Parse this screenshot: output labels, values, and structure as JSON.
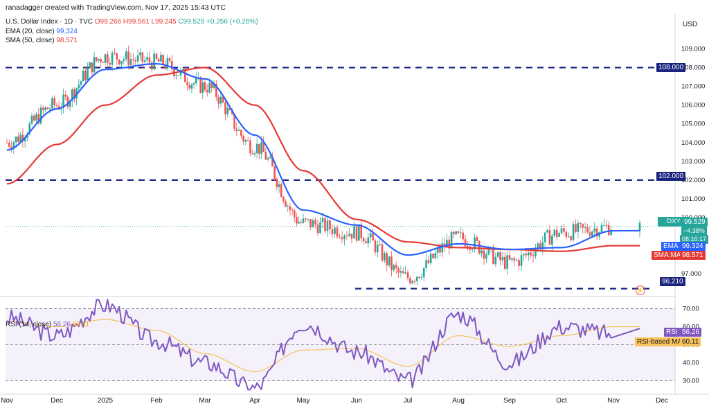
{
  "header": {
    "attribution": "ranadagger created with TradingView.com, Nov 17, 2025 15:43 UTC",
    "symbol": "U.S. Dollar Index · 1D · TVC",
    "ohlc": {
      "o": "O99.266",
      "h": "H99.561",
      "l": "L99.245",
      "c": "C99.529",
      "change": "+0.256 (+0.26%)"
    },
    "ema_label": "EMA (20, close)",
    "ema_value": "99.324",
    "sma_label": "SMA (50, close)",
    "sma_value": "98.571",
    "rsi_label": "RSI (14, close)",
    "rsi_value": "56.26",
    "rsi_ma_value": "60.11",
    "currency": "USD"
  },
  "price_tags": {
    "symbol": "DXY",
    "price": "99.529",
    "change_pct": "−4.38%",
    "countdown": "08:16:17",
    "ema_tag": "EMA",
    "ema": "99.324",
    "sma_tag": "SMA:MA",
    "sma": "98.571",
    "level_108": "108.000",
    "level_102": "102.000",
    "level_96": "96.210",
    "rsi_ma_tag": "RSI-based MA",
    "rsi_ma": "60.11",
    "rsi_tag": "RSI",
    "rsi": "56.26"
  },
  "colors": {
    "up": "#26a69a",
    "down": "#ef5350",
    "ema": "#2962ff",
    "sma": "#e53935",
    "rsi": "#7e57c2",
    "rsi_ma": "#f7c35a",
    "level": "#1a237e"
  },
  "chart_data": {
    "type": "line",
    "title": "U.S. Dollar Index · 1D · TVC",
    "x_labels": [
      "Nov",
      "Dec",
      "2025",
      "Feb",
      "Mar",
      "Apr",
      "May",
      "Jun",
      "Jul",
      "Aug",
      "Sep",
      "Oct",
      "Nov",
      "Dec"
    ],
    "price_ticks": [
      97.0,
      98.0,
      99.0,
      100.0,
      101.0,
      102.0,
      103.0,
      104.0,
      105.0,
      106.0,
      107.0,
      108.0,
      109.0
    ],
    "price_ylim": [
      95.9,
      110.2
    ],
    "rsi_ticks": [
      30.0,
      40.0,
      50.0,
      60.0,
      70.0
    ],
    "rsi_ylim": [
      24,
      76
    ],
    "horizontal_levels": [
      108.0,
      102.0,
      96.21
    ],
    "series": [
      {
        "name": "EMA (20, close)",
        "x": [
          "Nov",
          "Dec",
          "2025",
          "Feb",
          "Mar",
          "Apr",
          "May",
          "Jun",
          "Jul",
          "Aug",
          "Sep",
          "Oct",
          "Nov"
        ],
        "values": [
          103.6,
          105.8,
          107.9,
          108.2,
          107.4,
          104.4,
          100.4,
          99.6,
          98.0,
          98.6,
          98.3,
          98.4,
          99.3
        ]
      },
      {
        "name": "SMA (50, close)",
        "x": [
          "Nov",
          "Dec",
          "2025",
          "Feb",
          "Mar",
          "Apr",
          "May",
          "Jun",
          "Jul",
          "Aug",
          "Sep",
          "Oct",
          "Nov"
        ],
        "values": [
          101.8,
          103.9,
          106.0,
          107.6,
          108.0,
          106.0,
          102.5,
          99.9,
          98.7,
          98.4,
          98.3,
          98.2,
          98.5
        ]
      },
      {
        "name": "U.S. Dollar Index (close)",
        "x": [
          "Nov",
          "Dec",
          "2025",
          "Feb",
          "Mar",
          "Apr",
          "May",
          "Jun",
          "Jul",
          "Aug",
          "Sep",
          "Oct",
          "Nov"
        ],
        "values": [
          104.0,
          106.0,
          108.6,
          108.3,
          107.0,
          103.8,
          99.7,
          99.2,
          96.8,
          98.9,
          97.6,
          99.2,
          99.5
        ]
      },
      {
        "name": "RSI (14, close)",
        "x": [
          "Nov",
          "Dec",
          "2025",
          "Feb",
          "Mar",
          "Apr",
          "May",
          "Jun",
          "Jul",
          "Aug",
          "Sep",
          "Oct",
          "Nov"
        ],
        "values": [
          65,
          55,
          72,
          52,
          40,
          26,
          62,
          46,
          30,
          67,
          40,
          60,
          56
        ]
      },
      {
        "name": "RSI-based MA",
        "x": [
          "Nov",
          "Dec",
          "2025",
          "Feb",
          "Mar",
          "Apr",
          "May",
          "Jun",
          "Jul",
          "Aug",
          "Sep",
          "Oct",
          "Nov"
        ],
        "values": [
          63,
          60,
          64,
          58,
          45,
          35,
          47,
          48,
          38,
          55,
          49,
          55,
          60
        ]
      }
    ]
  }
}
